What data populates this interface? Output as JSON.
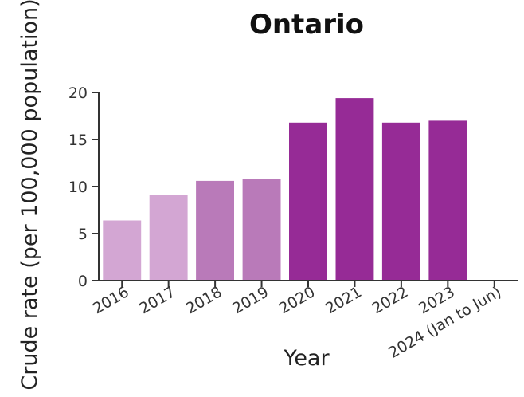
{
  "chart_data": {
    "type": "bar",
    "title": "Ontario",
    "xlabel": "Year",
    "ylabel": "Crude rate (per 100,000 population)",
    "categories": [
      "2016",
      "2017",
      "2018",
      "2019",
      "2020",
      "2021",
      "2022",
      "2023",
      "2024 (Jan to Jun)"
    ],
    "values": [
      6.4,
      9.1,
      10.6,
      10.8,
      16.8,
      19.4,
      16.8,
      17.0,
      null
    ],
    "bar_colors": [
      "#d3a6d3",
      "#d3a6d3",
      "#b97ab9",
      "#b97ab9",
      "#962b96",
      "#962b96",
      "#962b96",
      "#962b96",
      "#962b96"
    ],
    "ylim": [
      0,
      20
    ],
    "yticks": [
      0,
      5,
      10,
      15,
      20
    ],
    "grid": false,
    "legend": "none"
  }
}
